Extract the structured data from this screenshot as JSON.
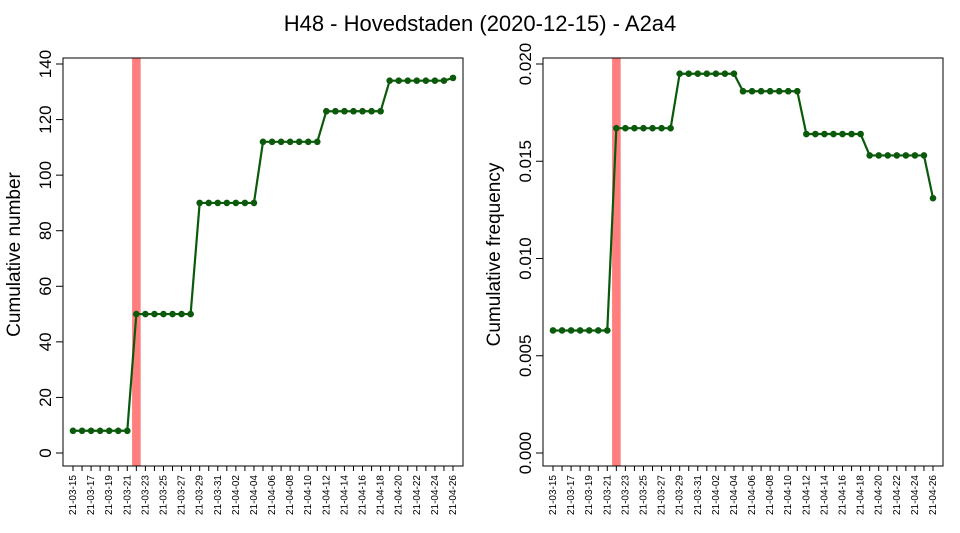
{
  "figure": {
    "title": "H48 - Hovedstaden (2020-12-15) - A2a4"
  },
  "colors": {
    "series": "#0b5a0b",
    "marker": "#ff7f7f",
    "axis": "#000000"
  },
  "chart_data": [
    {
      "type": "line",
      "title": "",
      "xlabel": "",
      "ylabel": "Cumulative number",
      "categories": [
        "21-03-15",
        "21-03-16",
        "21-03-17",
        "21-03-18",
        "21-03-19",
        "21-03-20",
        "21-03-21",
        "21-03-22",
        "21-03-23",
        "21-03-24",
        "21-03-25",
        "21-03-26",
        "21-03-27",
        "21-03-28",
        "21-03-29",
        "21-03-30",
        "21-03-31",
        "21-04-01",
        "21-04-02",
        "21-04-03",
        "21-04-04",
        "21-04-05",
        "21-04-06",
        "21-04-07",
        "21-04-08",
        "21-04-09",
        "21-04-10",
        "21-04-11",
        "21-04-12",
        "21-04-13",
        "21-04-14",
        "21-04-15",
        "21-04-16",
        "21-04-17",
        "21-04-18",
        "21-04-19",
        "21-04-20",
        "21-04-21",
        "21-04-22",
        "21-04-23",
        "21-04-24",
        "21-04-25",
        "21-04-26"
      ],
      "tick_labels": [
        "21-03-15",
        "21-03-17",
        "21-03-19",
        "21-03-21",
        "21-03-23",
        "21-03-25",
        "21-03-27",
        "21-03-29",
        "21-03-31",
        "21-04-02",
        "21-04-04",
        "21-04-06",
        "21-04-08",
        "21-04-10",
        "21-04-12",
        "21-04-14",
        "21-04-16",
        "21-04-18",
        "21-04-20",
        "21-04-22",
        "21-04-24",
        "21-04-26"
      ],
      "yticks": [
        "0",
        "20",
        "40",
        "60",
        "80",
        "100",
        "120",
        "140"
      ],
      "ylim": [
        0,
        140
      ],
      "highlight_date": "21-03-22",
      "grid": false,
      "series": [
        {
          "values": [
            8,
            8,
            8,
            8,
            8,
            8,
            8,
            50,
            50,
            50,
            50,
            50,
            50,
            50,
            90,
            90,
            90,
            90,
            90,
            90,
            90,
            112,
            112,
            112,
            112,
            112,
            112,
            112,
            123,
            123,
            123,
            123,
            123,
            123,
            123,
            134,
            134,
            134,
            134,
            134,
            134,
            134,
            135
          ]
        }
      ]
    },
    {
      "type": "line",
      "title": "",
      "xlabel": "",
      "ylabel": "Cumulative frequency",
      "categories": [
        "21-03-15",
        "21-03-16",
        "21-03-17",
        "21-03-18",
        "21-03-19",
        "21-03-20",
        "21-03-21",
        "21-03-22",
        "21-03-23",
        "21-03-24",
        "21-03-25",
        "21-03-26",
        "21-03-27",
        "21-03-28",
        "21-03-29",
        "21-03-30",
        "21-03-31",
        "21-04-01",
        "21-04-02",
        "21-04-03",
        "21-04-04",
        "21-04-05",
        "21-04-06",
        "21-04-07",
        "21-04-08",
        "21-04-09",
        "21-04-10",
        "21-04-11",
        "21-04-12",
        "21-04-13",
        "21-04-14",
        "21-04-15",
        "21-04-16",
        "21-04-17",
        "21-04-18",
        "21-04-19",
        "21-04-20",
        "21-04-21",
        "21-04-22",
        "21-04-23",
        "21-04-24",
        "21-04-25",
        "21-04-26"
      ],
      "tick_labels": [
        "21-03-15",
        "21-03-17",
        "21-03-19",
        "21-03-21",
        "21-03-23",
        "21-03-25",
        "21-03-27",
        "21-03-29",
        "21-03-31",
        "21-04-02",
        "21-04-04",
        "21-04-06",
        "21-04-08",
        "21-04-10",
        "21-04-12",
        "21-04-14",
        "21-04-16",
        "21-04-18",
        "21-04-20",
        "21-04-22",
        "21-04-24",
        "21-04-26"
      ],
      "yticks": [
        "0.000",
        "0.005",
        "0.010",
        "0.015",
        "0.020"
      ],
      "ylim": [
        0,
        0.02
      ],
      "highlight_date": "21-03-22",
      "grid": false,
      "series": [
        {
          "values": [
            0.0063,
            0.0063,
            0.0063,
            0.0063,
            0.0063,
            0.0063,
            0.0063,
            0.0167,
            0.0167,
            0.0167,
            0.0167,
            0.0167,
            0.0167,
            0.0167,
            0.0195,
            0.0195,
            0.0195,
            0.0195,
            0.0195,
            0.0195,
            0.0195,
            0.0186,
            0.0186,
            0.0186,
            0.0186,
            0.0186,
            0.0186,
            0.0186,
            0.0164,
            0.0164,
            0.0164,
            0.0164,
            0.0164,
            0.0164,
            0.0164,
            0.0153,
            0.0153,
            0.0153,
            0.0153,
            0.0153,
            0.0153,
            0.0153,
            0.0131
          ]
        }
      ]
    }
  ]
}
